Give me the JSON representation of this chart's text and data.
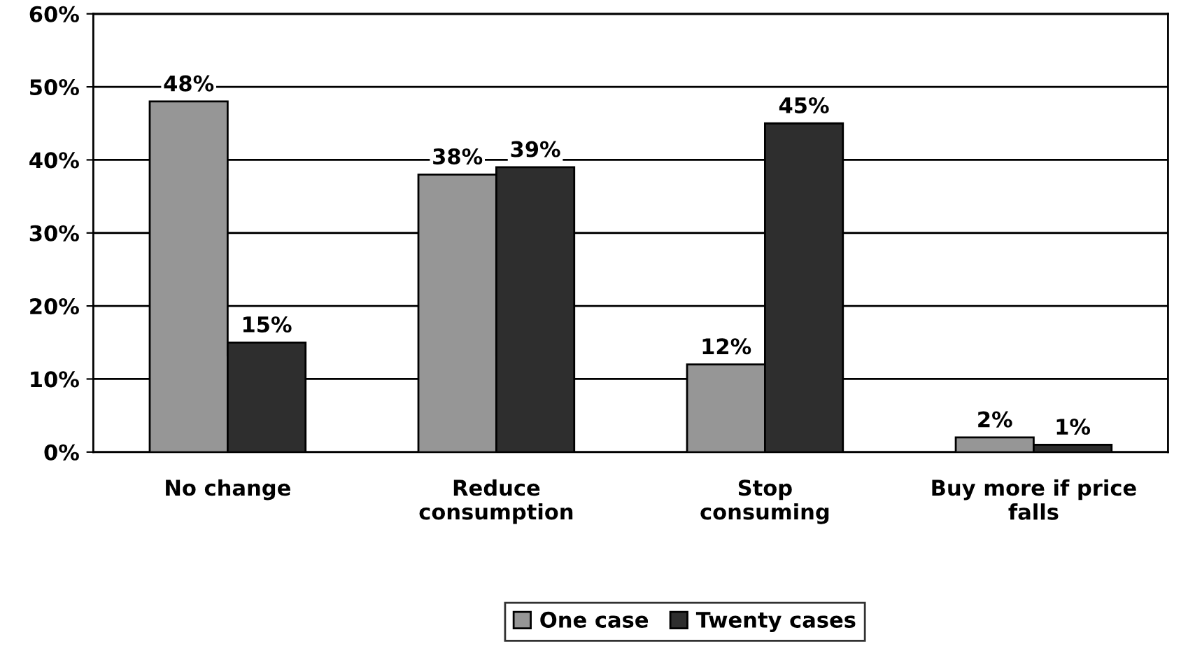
{
  "chart_data": {
    "type": "bar",
    "categories": [
      "No change",
      "Reduce\nconsumption",
      "Stop\nconsuming",
      "Buy more if price\nfalls"
    ],
    "series": [
      {
        "name": "One case",
        "color": "#969696",
        "values": [
          48,
          38,
          12,
          2
        ],
        "value_labels": [
          "48%",
          "38%",
          "12%",
          "2%"
        ]
      },
      {
        "name": "Twenty cases",
        "color": "#2e2e2e",
        "values": [
          15,
          39,
          45,
          1
        ],
        "value_labels": [
          "15%",
          "39%",
          "45%",
          "1%"
        ]
      }
    ],
    "ylim": [
      0,
      60
    ],
    "yticks": [
      {
        "value": 0,
        "label": "0%"
      },
      {
        "value": 10,
        "label": "10%"
      },
      {
        "value": 20,
        "label": "20%"
      },
      {
        "value": 30,
        "label": "30%"
      },
      {
        "value": 40,
        "label": "40%"
      },
      {
        "value": 50,
        "label": "50%"
      },
      {
        "value": 60,
        "label": "60%"
      }
    ],
    "grid": "y",
    "legend": "bottom"
  }
}
